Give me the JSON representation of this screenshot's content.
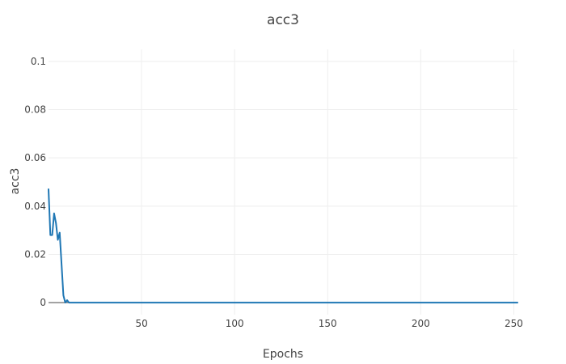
{
  "chart_data": {
    "type": "line",
    "title": "acc3",
    "xlabel": "Epochs",
    "ylabel": "acc3",
    "xlim": [
      0,
      252
    ],
    "ylim": [
      -0.005,
      0.105
    ],
    "grid": true,
    "legend": "none",
    "x_ticks": [
      50,
      100,
      150,
      200,
      250
    ],
    "y_ticks": [
      0,
      0.02,
      0.04,
      0.06,
      0.08,
      0.1
    ],
    "x_tick_labels": [
      "50",
      "100",
      "150",
      "200",
      "250"
    ],
    "y_tick_labels": [
      "0",
      "0.02",
      "0.04",
      "0.06",
      "0.08",
      "0.1"
    ],
    "series": [
      {
        "color": "#1f77b4",
        "x": [
          0,
          1,
          2,
          3,
          4,
          5,
          6,
          7,
          8,
          9,
          10,
          11,
          12,
          13,
          14,
          15,
          20,
          30,
          50,
          100,
          150,
          200,
          252
        ],
        "y": [
          0.047,
          0.028,
          0.028,
          0.037,
          0.033,
          0.026,
          0.029,
          0.016,
          0.003,
          0.0,
          0.001,
          0.0,
          0.0,
          0.0,
          0.0,
          0.0,
          0.0,
          0.0,
          0.0,
          0.0,
          0.0,
          0.0,
          0.0
        ]
      }
    ]
  }
}
